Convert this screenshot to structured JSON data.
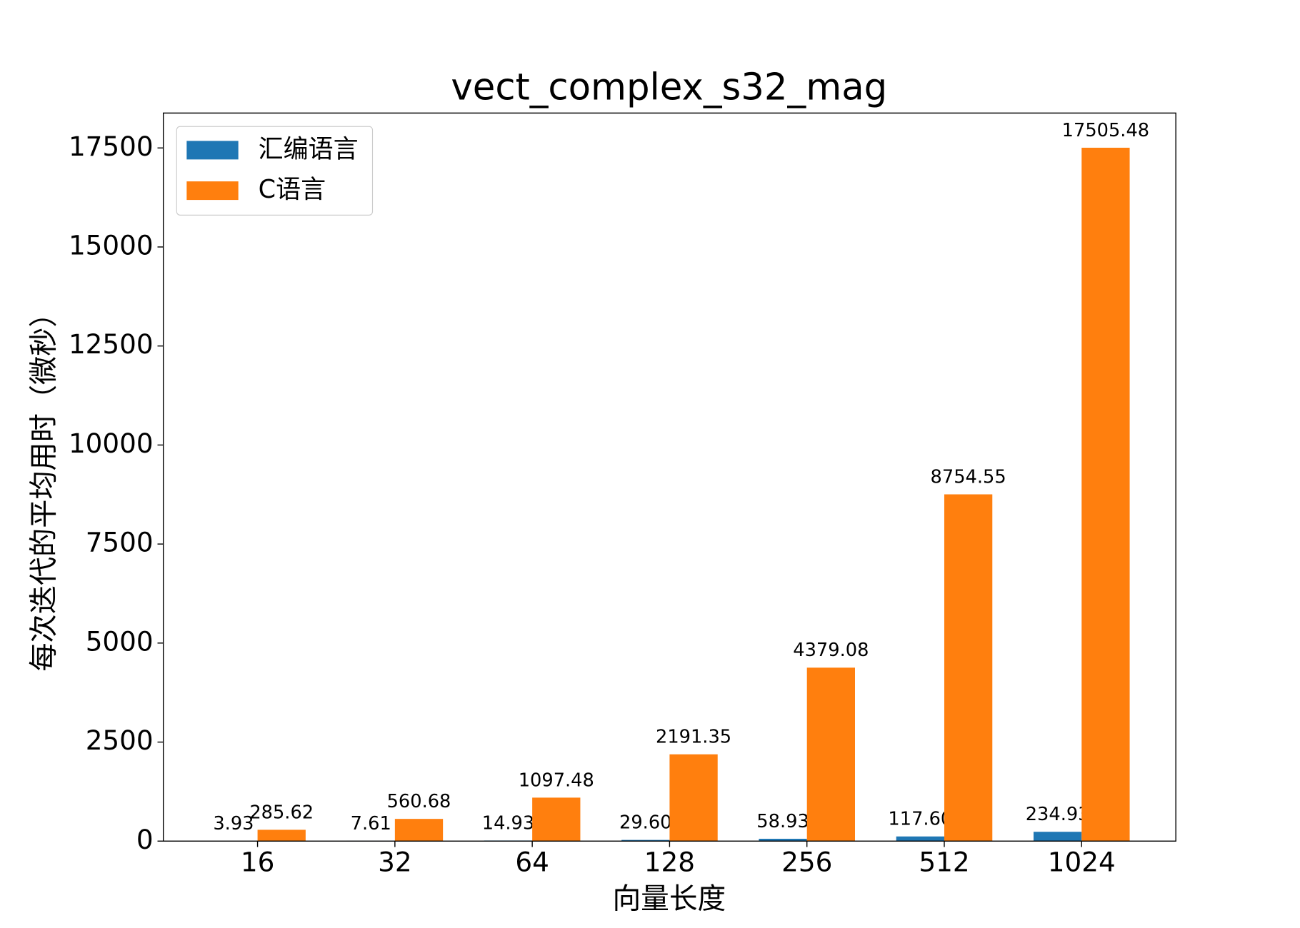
{
  "chart_data": {
    "type": "bar",
    "title": "vect_complex_s32_mag",
    "x_label": "向量长度",
    "y_label": "每次迭代的平均用时（微秒）",
    "categories": [
      "16",
      "32",
      "64",
      "128",
      "256",
      "512",
      "1024"
    ],
    "series": [
      {
        "name": "汇编语言",
        "color": "#1f77b4",
        "values": [
          3.93,
          7.61,
          14.93,
          29.6,
          58.93,
          117.6,
          234.93
        ],
        "value_labels": [
          "3.93",
          "7.61",
          "14.93",
          "29.60",
          "58.93",
          "117.60",
          "234.93"
        ]
      },
      {
        "name": "C语言",
        "color": "#ff7f0e",
        "values": [
          285.62,
          560.68,
          1097.48,
          2191.35,
          4379.08,
          8754.55,
          17505.48
        ],
        "value_labels": [
          "285.62",
          "560.68",
          "1097.48",
          "2191.35",
          "4379.08",
          "8754.55",
          "17505.48"
        ]
      }
    ],
    "ylim": [
      0,
      18381
    ],
    "yticks": [
      0,
      2500,
      5000,
      7500,
      10000,
      12500,
      15000,
      17500
    ],
    "legend": "upper left"
  }
}
